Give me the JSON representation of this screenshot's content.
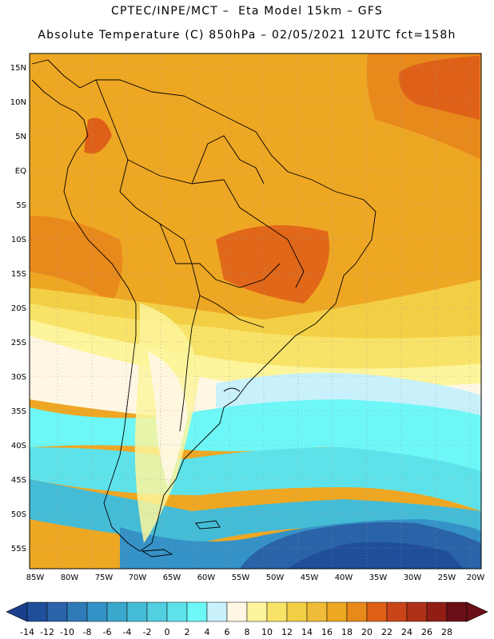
{
  "header": {
    "line1": "CPTEC/INPE/MCT –  Eta Model 15km – GFS",
    "line2": "Absolute Temperature (C) 850hPa – 02/05/2021 12UTC fct=158h"
  },
  "map": {
    "lat_labels": [
      "15N",
      "10N",
      "5N",
      "EQ",
      "5S",
      "10S",
      "15S",
      "20S",
      "25S",
      "30S",
      "35S",
      "40S",
      "45S",
      "50S",
      "55S"
    ],
    "lon_labels": [
      "85W",
      "80W",
      "75W",
      "70W",
      "65W",
      "60W",
      "55W",
      "50W",
      "45W",
      "40W",
      "35W",
      "30W",
      "25W",
      "20W"
    ],
    "lon_range": [
      -85,
      -20
    ],
    "lat_range": [
      -58,
      17
    ],
    "grid": true
  },
  "colorbar": {
    "labels": [
      "-14",
      "-12",
      "-10",
      "-8",
      "-6",
      "-4",
      "-2",
      "0",
      "2",
      "4",
      "6",
      "8",
      "10",
      "12",
      "14",
      "16",
      "18",
      "20",
      "22",
      "24",
      "26",
      "28"
    ],
    "under_color": "#1b3f8c",
    "over_color": "#6b0f16",
    "colors": [
      "#1f4e9a",
      "#2a63a8",
      "#2f7bb8",
      "#3592c6",
      "#3aa8cc",
      "#45bcd6",
      "#52cfe0",
      "#5ee2ea",
      "#6df7f7",
      "#c8f1fb",
      "#fff7e4",
      "#fdf49c",
      "#f8e368",
      "#f3cf46",
      "#f0bb38",
      "#eea723",
      "#e8891c",
      "#df6118",
      "#c8451a",
      "#ad3218",
      "#901e14",
      "#6b0f16"
    ]
  }
}
